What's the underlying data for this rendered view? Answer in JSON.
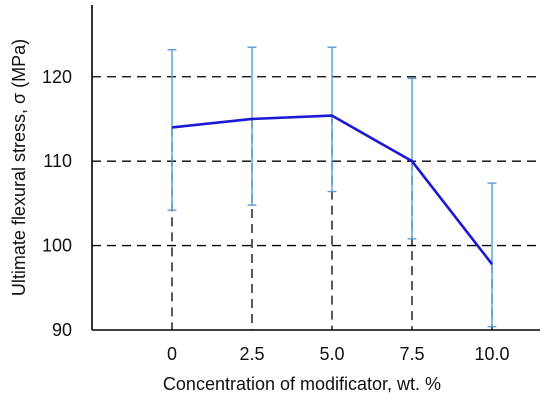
{
  "chart_data": {
    "type": "line",
    "title": "",
    "xlabel": "Concentration of modificator, wt. %",
    "ylabel": "Ultimate flexural stress, σ (MPa)",
    "x": [
      0,
      2.5,
      5.0,
      7.5,
      10.0
    ],
    "x_tick_labels": [
      "0",
      "2.5",
      "5.0",
      "7.5",
      "10.0"
    ],
    "y_ticks": [
      90,
      100,
      110,
      120
    ],
    "y_tick_labels": [
      "90",
      "100",
      "110",
      "120"
    ],
    "xlim": [
      -2.5,
      11.5
    ],
    "ylim": [
      90,
      128.5
    ],
    "grid": true,
    "legend": "none",
    "series": [
      {
        "values": [
          114.0,
          115.0,
          115.4,
          110.0,
          97.8
        ],
        "error_low": [
          104.2,
          104.8,
          106.4,
          100.8,
          90.4
        ],
        "error_high": [
          123.2,
          123.5,
          123.5,
          119.8,
          107.4
        ],
        "color": "#1a1ad6",
        "error_color": "#5b9bd5"
      }
    ]
  }
}
